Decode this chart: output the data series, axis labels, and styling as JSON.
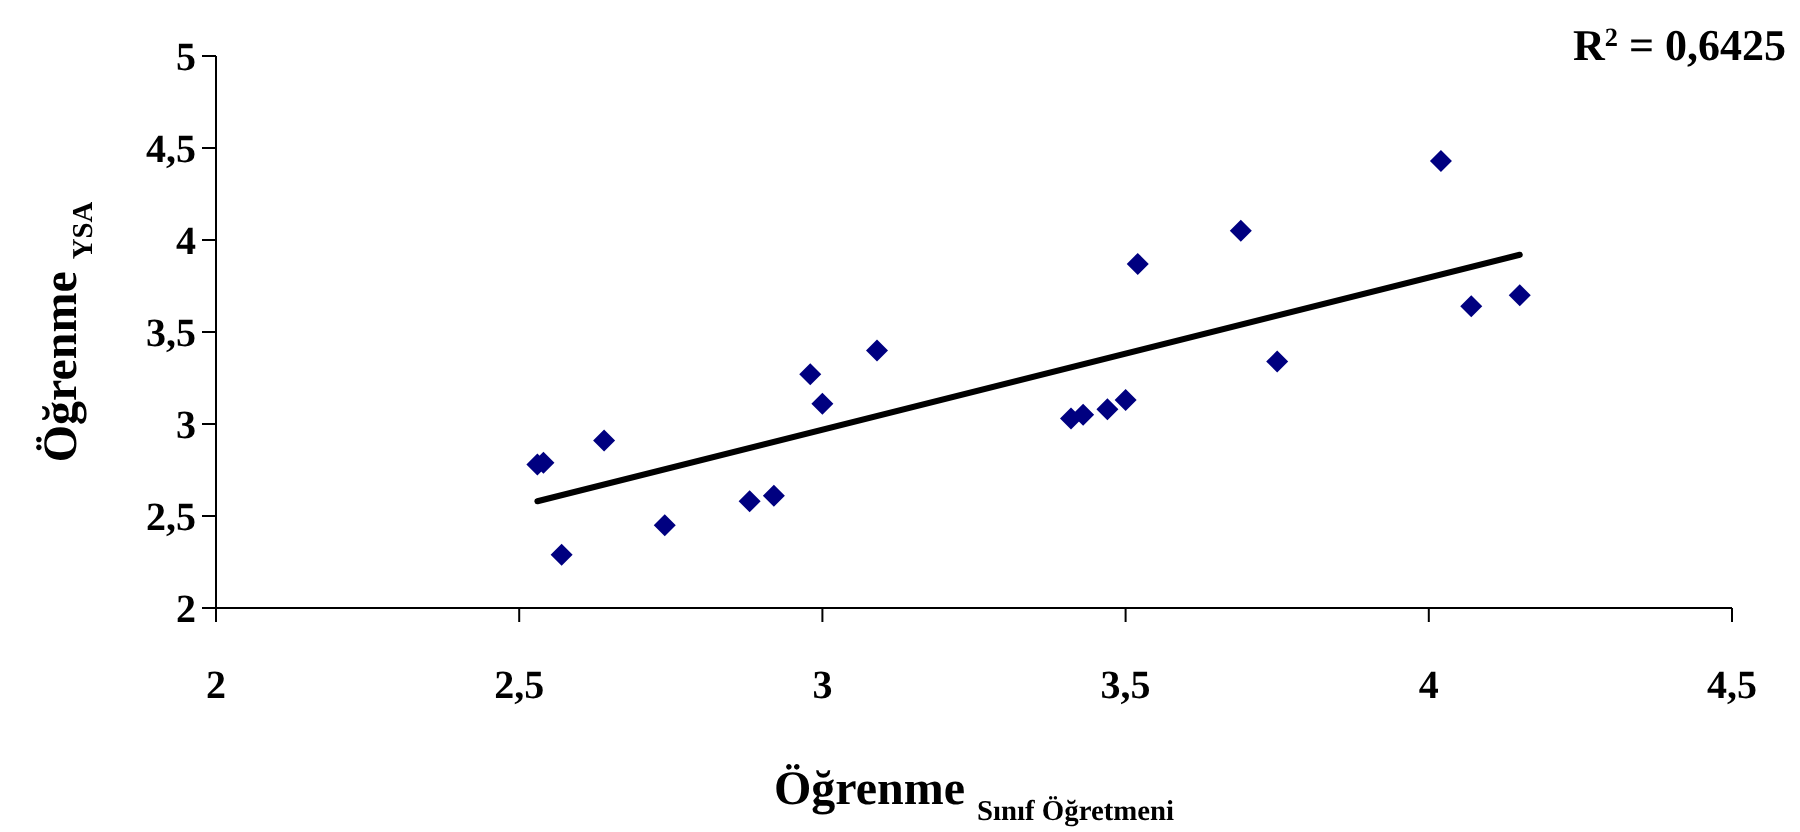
{
  "chart_data": {
    "type": "scatter",
    "xlabel": "Öğrenme $_{Sınıf Öğretmeni}$",
    "ylabel": "Öğrenme $_{YSA}$",
    "annotations": [
      "R$^{2}$ = 0,6425"
    ],
    "xlim": [
      2,
      4.5
    ],
    "xticks": [
      2,
      {
        "value": 2.5,
        "label": "2,5"
      },
      3,
      {
        "value": 3.5,
        "label": "3,5"
      },
      4,
      {
        "value": 4.5,
        "label": "4,5"
      }
    ],
    "ylim": [
      2,
      5
    ],
    "yticks": [
      2,
      {
        "value": 2.5,
        "label": "2,5"
      },
      3,
      {
        "value": 3.5,
        "label": "3,5"
      },
      4,
      {
        "value": 4.5,
        "label": "4,5"
      },
      5
    ],
    "grid": false,
    "marker": "diamond",
    "series": [
      {
        "color": "#000080",
        "x": [
          2.53,
          2.54,
          2.57,
          2.64,
          2.74,
          2.88,
          2.92,
          2.98,
          3.0,
          3.09,
          3.41,
          3.43,
          3.47,
          3.5,
          3.52,
          3.69,
          3.75,
          4.02,
          4.07,
          4.15
        ],
        "values": [
          2.78,
          2.79,
          2.29,
          2.91,
          2.45,
          2.58,
          2.61,
          3.27,
          3.11,
          3.4,
          3.03,
          3.05,
          3.08,
          3.13,
          3.87,
          4.05,
          3.34,
          4.43,
          3.64,
          3.7
        ]
      },
      {
        "type": "line",
        "color": "#000000",
        "marker": "none",
        "line_style": "solid",
        "x": [
          2.53,
          4.15
        ],
        "values": [
          2.58,
          3.92
        ]
      }
    ]
  }
}
